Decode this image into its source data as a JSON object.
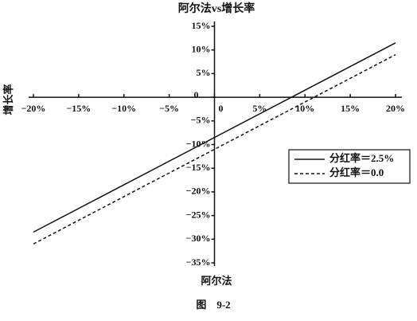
{
  "chart_data": {
    "type": "line",
    "title": "阿尔法vs增长率",
    "xlabel": "阿尔法",
    "ylabel": "增长率",
    "caption": "图　9-2",
    "x": [
      -20,
      20
    ],
    "series": [
      {
        "name": "分红率＝2.5%",
        "color": "#111111",
        "dash": false,
        "values": [
          -28.5,
          11.5
        ]
      },
      {
        "name": "分红率＝0.0",
        "color": "#111111",
        "dash": true,
        "values": [
          -31,
          9
        ]
      }
    ],
    "xlim": [
      -20,
      20
    ],
    "ylim": [
      -35,
      15
    ],
    "xticks": [
      {
        "value": -20,
        "label": "−20%"
      },
      {
        "value": -15,
        "label": "−15%"
      },
      {
        "value": -10,
        "label": "−10%"
      },
      {
        "value": -5,
        "label": "−5%"
      },
      0,
      {
        "value": 5,
        "label": "5%"
      },
      {
        "value": 10,
        "label": "10%"
      },
      {
        "value": 15,
        "label": "15%"
      },
      {
        "value": 20,
        "label": "20%"
      }
    ],
    "yticks": [
      {
        "value": 15,
        "label": "15%"
      },
      {
        "value": 10,
        "label": "10%"
      },
      {
        "value": 5,
        "label": "5%"
      },
      0,
      {
        "value": -5,
        "label": "−5%"
      },
      {
        "value": -10,
        "label": "−10%"
      },
      {
        "value": -15,
        "label": "−15%"
      },
      {
        "value": -20,
        "label": "−20%"
      },
      {
        "value": -25,
        "label": "−25%"
      },
      {
        "value": -30,
        "label": "−30%"
      },
      {
        "value": -35,
        "label": "−35%"
      }
    ],
    "legend": "right"
  }
}
